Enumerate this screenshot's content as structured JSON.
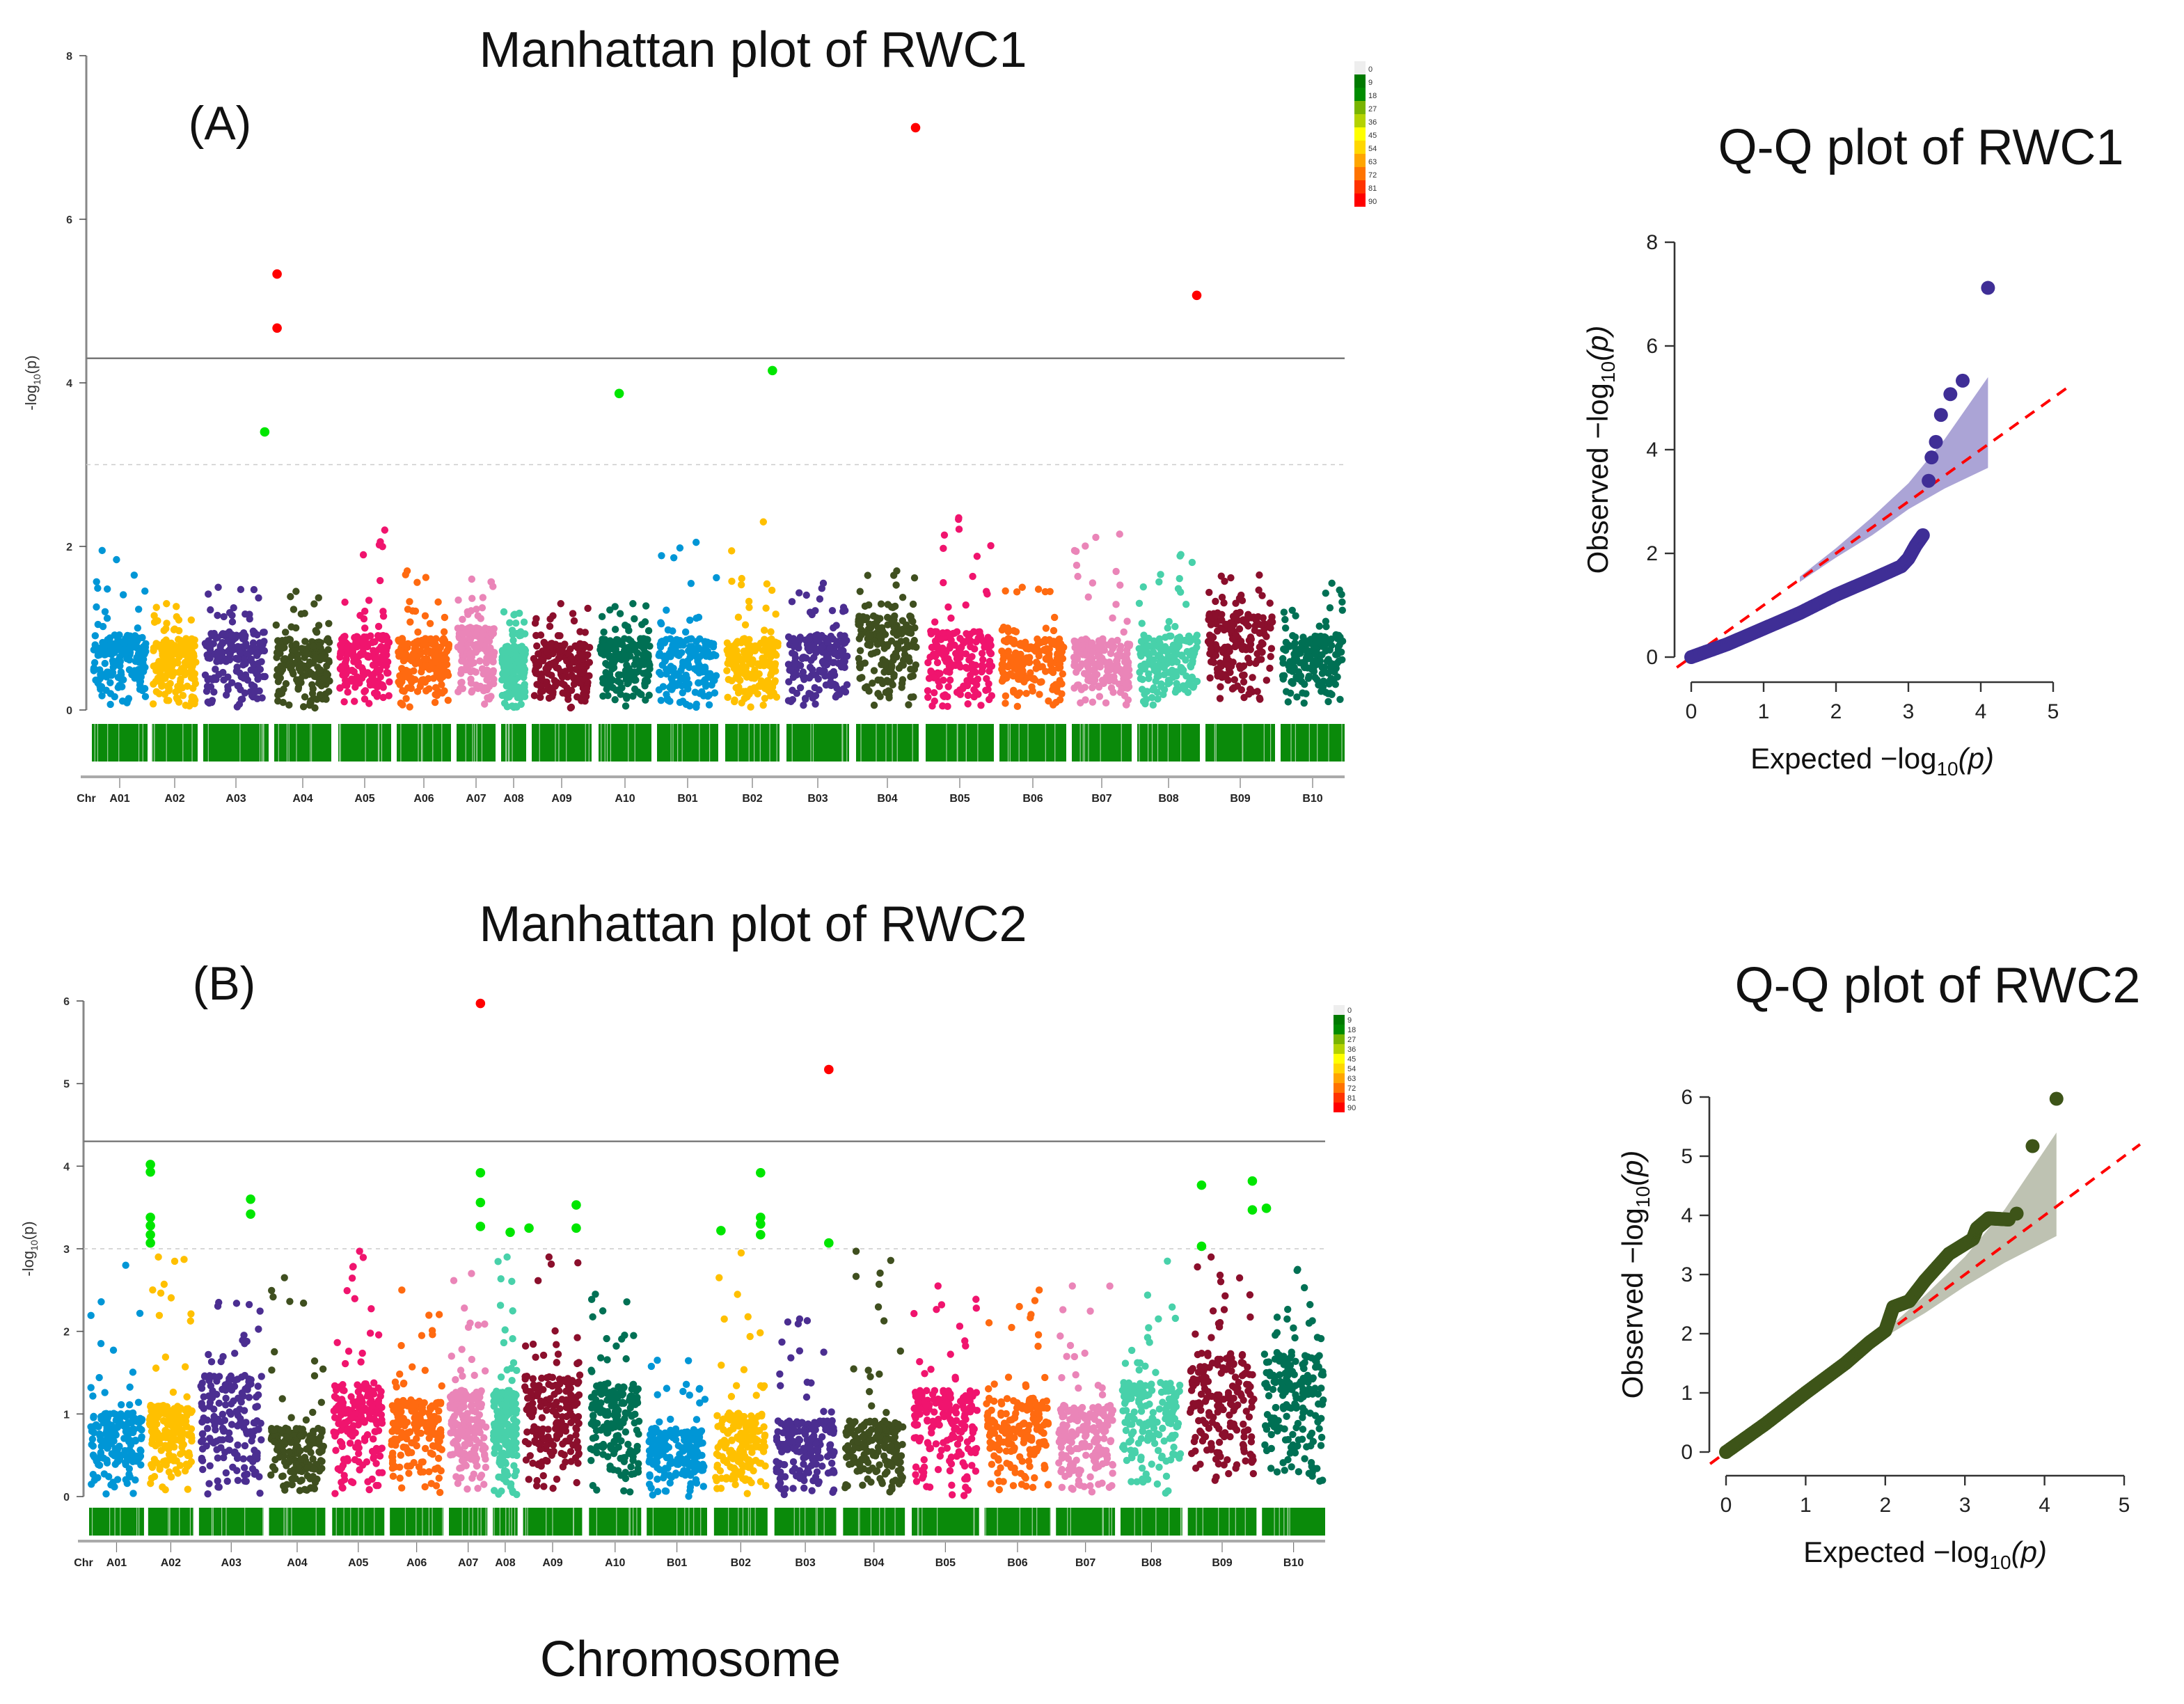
{
  "figure": {
    "xlabel": "Chromosome"
  },
  "chart_data": [
    {
      "type": "scatter",
      "kind": "manhattan",
      "panel_label": "(A)",
      "title": "Manhattan plot of RWC1",
      "ylabel": {
        "prefix": "-log",
        "sub": "10",
        "suffix": "(p)"
      },
      "ylim": [
        0,
        8
      ],
      "yticks": [
        "0",
        "2",
        "4",
        "6",
        "8"
      ],
      "xtick_first": "Chr",
      "chromosomes": [
        "A01",
        "A02",
        "A03",
        "A04",
        "A05",
        "A06",
        "A07",
        "A08",
        "A09",
        "A10",
        "B01",
        "B02",
        "B03",
        "B04",
        "B05",
        "B06",
        "B07",
        "B08",
        "B09",
        "B10"
      ],
      "chromosome_colors": [
        "#0096d6",
        "#ffc000",
        "#4b2e91",
        "#3f4f1f",
        "#f0146e",
        "#ff6a10",
        "#ea85b8",
        "#48d1aa",
        "#8b0f2c",
        "#007054",
        "#0096d6",
        "#ffc000",
        "#4b2e91",
        "#3f4f1f",
        "#f0146e",
        "#ff6a10",
        "#ea85b8",
        "#48d1aa",
        "#8b0f2c",
        "#007054"
      ],
      "bulk_top": [
        1.0,
        0.95,
        1.05,
        0.95,
        1.0,
        0.95,
        1.1,
        0.85,
        0.9,
        0.95,
        0.95,
        0.95,
        1.0,
        1.25,
        1.05,
        0.95,
        0.95,
        1.0,
        1.3,
        1.0
      ],
      "chromosome_max": [
        1.95,
        1.3,
        1.5,
        1.45,
        2.2,
        1.7,
        1.6,
        1.2,
        1.3,
        1.3,
        2.05,
        2.3,
        1.55,
        1.7,
        2.35,
        1.5,
        2.15,
        1.9,
        1.65,
        1.55
      ],
      "thresholds": {
        "significant": 4.3,
        "suggestive": 3.0
      },
      "highlighted_points": [
        {
          "chr": "A03",
          "value": 3.4,
          "color": "#00e600"
        },
        {
          "chr": "A04",
          "value": 5.33,
          "color": "#ff0000"
        },
        {
          "chr": "A04",
          "value": 4.67,
          "color": "#ff0000"
        },
        {
          "chr": "A10",
          "value": 3.87,
          "color": "#00e600"
        },
        {
          "chr": "B02",
          "value": 4.15,
          "color": "#00e600"
        },
        {
          "chr": "B04",
          "value": 7.12,
          "color": "#ff0000"
        },
        {
          "chr": "B08",
          "value": 5.07,
          "color": "#ff0000"
        }
      ],
      "density_legend": {
        "labels": [
          "0",
          "9",
          "18",
          "27",
          "36",
          "45",
          "54",
          "63",
          "72",
          "81",
          "90"
        ],
        "colors": [
          "#eeeeee",
          "#007a00",
          "#008c00",
          "#78b400",
          "#b4d200",
          "#ffff00",
          "#ffd700",
          "#ffa500",
          "#ff7300",
          "#ff3300",
          "#ff0000"
        ]
      },
      "density_strip_color": "#0a8a0a"
    },
    {
      "type": "scatter",
      "kind": "qq",
      "title": "Q-Q plot of RWC1",
      "xlabel": {
        "prefix": "Expected  −log",
        "sub": "10",
        "suffix": "(p)"
      },
      "ylabel": {
        "prefix": "Observed  −log",
        "sub": "10",
        "suffix": "(p)"
      },
      "xlim": [
        0,
        5
      ],
      "ylim": [
        0,
        8
      ],
      "xticks": [
        "0",
        "1",
        "2",
        "3",
        "4",
        "5"
      ],
      "yticks": [
        "0",
        "2",
        "4",
        "6",
        "8"
      ],
      "point_color": "#3f2e96",
      "band_color": "#8f86c8",
      "reference_line_color": "#ff0000",
      "observed_curve": [
        [
          0,
          0
        ],
        [
          0.5,
          0.25
        ],
        [
          1,
          0.55
        ],
        [
          1.5,
          0.85
        ],
        [
          2,
          1.2
        ],
        [
          2.5,
          1.5
        ],
        [
          2.9,
          1.75
        ],
        [
          3.0,
          1.9
        ],
        [
          3.1,
          2.15
        ],
        [
          3.2,
          2.35
        ]
      ],
      "outliers": [
        [
          3.28,
          3.4
        ],
        [
          3.32,
          3.85
        ],
        [
          3.38,
          4.15
        ],
        [
          3.45,
          4.67
        ],
        [
          3.58,
          5.07
        ],
        [
          3.75,
          5.33
        ],
        [
          4.1,
          7.12
        ]
      ],
      "confidence_band": {
        "x": [
          1.5,
          2,
          2.5,
          3,
          3.5,
          4.1
        ],
        "upper": [
          1.55,
          2.1,
          2.7,
          3.35,
          4.2,
          5.4
        ],
        "lower": [
          1.45,
          1.92,
          2.35,
          2.85,
          3.25,
          3.65
        ]
      }
    },
    {
      "type": "scatter",
      "kind": "manhattan",
      "panel_label": "(B)",
      "title": "Manhattan plot of RWC2",
      "ylabel": {
        "prefix": "-log",
        "sub": "10",
        "suffix": "(p)"
      },
      "ylim": [
        0,
        6
      ],
      "yticks": [
        "0",
        "1",
        "2",
        "3",
        "4",
        "5",
        "6"
      ],
      "xtick_first": "Chr",
      "chromosomes": [
        "A01",
        "A02",
        "A03",
        "A04",
        "A05",
        "A06",
        "A07",
        "A08",
        "A09",
        "A10",
        "B01",
        "B02",
        "B03",
        "B04",
        "B05",
        "B06",
        "B07",
        "B08",
        "B09",
        "B10"
      ],
      "chromosome_colors": [
        "#0096d6",
        "#ffc000",
        "#4b2e91",
        "#3f4f1f",
        "#f0146e",
        "#ff6a10",
        "#ea85b8",
        "#48d1aa",
        "#8b0f2c",
        "#007054",
        "#0096d6",
        "#ffc000",
        "#4b2e91",
        "#3f4f1f",
        "#f0146e",
        "#ff6a10",
        "#ea85b8",
        "#48d1aa",
        "#8b0f2c",
        "#007054"
      ],
      "bulk_top": [
        1.1,
        1.2,
        1.6,
        0.9,
        1.5,
        1.3,
        1.4,
        1.4,
        1.6,
        1.5,
        0.9,
        1.1,
        1.0,
        1.0,
        1.4,
        1.3,
        1.2,
        1.5,
        1.9,
        1.9
      ],
      "chromosome_max": [
        2.8,
        2.9,
        2.35,
        2.65,
        2.97,
        2.5,
        2.7,
        2.9,
        2.9,
        2.45,
        1.65,
        2.95,
        2.15,
        2.97,
        2.55,
        2.5,
        2.55,
        2.85,
        2.9,
        2.75
      ],
      "thresholds": {
        "significant": 4.3,
        "suggestive": 3.0
      },
      "highlighted_points": [
        {
          "chr": "A02",
          "value": 4.02,
          "color": "#00e600"
        },
        {
          "chr": "A02",
          "value": 3.93,
          "color": "#00e600"
        },
        {
          "chr": "A02",
          "value": 3.38,
          "color": "#00e600"
        },
        {
          "chr": "A02",
          "value": 3.28,
          "color": "#00e600"
        },
        {
          "chr": "A02",
          "value": 3.17,
          "color": "#00e600"
        },
        {
          "chr": "A02",
          "value": 3.07,
          "color": "#00e600"
        },
        {
          "chr": "A03",
          "value": 3.6,
          "color": "#00e600"
        },
        {
          "chr": "A03",
          "value": 3.42,
          "color": "#00e600"
        },
        {
          "chr": "A07",
          "value": 5.97,
          "color": "#ff0000"
        },
        {
          "chr": "A07",
          "value": 3.92,
          "color": "#00e600"
        },
        {
          "chr": "A07",
          "value": 3.56,
          "color": "#00e600"
        },
        {
          "chr": "A07",
          "value": 3.27,
          "color": "#00e600"
        },
        {
          "chr": "A08",
          "value": 3.2,
          "color": "#00e600"
        },
        {
          "chr": "A09",
          "value": 3.25,
          "color": "#00e600"
        },
        {
          "chr": "A09",
          "value": 3.53,
          "color": "#00e600"
        },
        {
          "chr": "A09",
          "value": 3.25,
          "color": "#00e600"
        },
        {
          "chr": "B02",
          "value": 3.22,
          "color": "#00e600"
        },
        {
          "chr": "B02",
          "value": 3.92,
          "color": "#00e600"
        },
        {
          "chr": "B02",
          "value": 3.38,
          "color": "#00e600"
        },
        {
          "chr": "B02",
          "value": 3.3,
          "color": "#00e600"
        },
        {
          "chr": "B02",
          "value": 3.17,
          "color": "#00e600"
        },
        {
          "chr": "B03",
          "value": 5.17,
          "color": "#ff0000"
        },
        {
          "chr": "B03",
          "value": 3.07,
          "color": "#00e600"
        },
        {
          "chr": "B09",
          "value": 3.77,
          "color": "#00e600"
        },
        {
          "chr": "B09",
          "value": 3.03,
          "color": "#00e600"
        },
        {
          "chr": "B09",
          "value": 3.82,
          "color": "#00e600"
        },
        {
          "chr": "B09",
          "value": 3.47,
          "color": "#00e600"
        },
        {
          "chr": "B10",
          "value": 3.49,
          "color": "#00e600"
        }
      ],
      "density_legend": {
        "labels": [
          "0",
          "9",
          "18",
          "27",
          "36",
          "45",
          "54",
          "63",
          "72",
          "81",
          "90"
        ],
        "colors": [
          "#eeeeee",
          "#007a00",
          "#008c00",
          "#78b400",
          "#b4d200",
          "#ffff00",
          "#ffd700",
          "#ffa500",
          "#ff7300",
          "#ff3300",
          "#ff0000"
        ]
      },
      "density_strip_color": "#0a8a0a"
    },
    {
      "type": "scatter",
      "kind": "qq",
      "title": "Q-Q plot of RWC2",
      "xlabel": {
        "prefix": "Expected  −log",
        "sub": "10",
        "suffix": "(p)"
      },
      "ylabel": {
        "prefix": "Observed  −log",
        "sub": "10",
        "suffix": "(p)"
      },
      "xlim": [
        0,
        5
      ],
      "ylim": [
        0,
        6
      ],
      "xticks": [
        "0",
        "1",
        "2",
        "3",
        "4",
        "5"
      ],
      "yticks": [
        "0",
        "1",
        "2",
        "3",
        "4",
        "5",
        "6"
      ],
      "point_color": "#3d5418",
      "band_color": "#a8ae98",
      "reference_line_color": "#ff0000",
      "observed_curve": [
        [
          0,
          0
        ],
        [
          0.5,
          0.48
        ],
        [
          1,
          1.0
        ],
        [
          1.5,
          1.5
        ],
        [
          1.8,
          1.85
        ],
        [
          2.0,
          2.05
        ],
        [
          2.1,
          2.45
        ],
        [
          2.3,
          2.55
        ],
        [
          2.5,
          2.9
        ],
        [
          2.8,
          3.35
        ],
        [
          3.1,
          3.6
        ],
        [
          3.15,
          3.78
        ],
        [
          3.3,
          3.95
        ],
        [
          3.55,
          3.93
        ]
      ],
      "outliers": [
        [
          3.65,
          4.03
        ],
        [
          3.85,
          5.17
        ],
        [
          4.15,
          5.97
        ]
      ],
      "confidence_band": {
        "x": [
          2,
          2.5,
          3,
          3.5,
          4.15
        ],
        "upper": [
          2.05,
          2.65,
          3.3,
          4.1,
          5.4
        ],
        "lower": [
          1.95,
          2.35,
          2.8,
          3.2,
          3.65
        ]
      }
    }
  ]
}
